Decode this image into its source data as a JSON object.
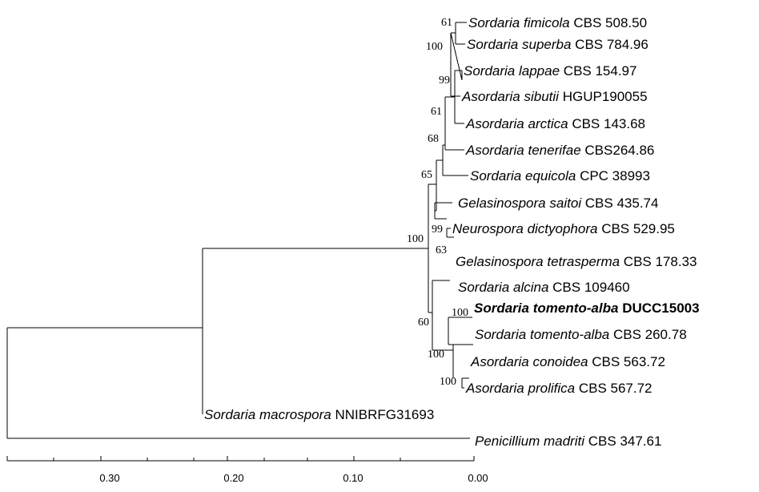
{
  "taxa": [
    {
      "genus": "Sordaria",
      "species": "fimicola",
      "strain": "CBS 508.50",
      "bold": false
    },
    {
      "genus": "Sordaria",
      "species": "superba",
      "strain": "CBS 784.96",
      "bold": false
    },
    {
      "genus": "Sordaria",
      "species": "lappae",
      "strain": "CBS 154.97",
      "bold": false
    },
    {
      "genus": "Asordaria",
      "species": "sibutii",
      "strain": "HGUP190055",
      "bold": false
    },
    {
      "genus": "Asordaria",
      "species": "arctica",
      "strain": "CBS 143.68",
      "bold": false
    },
    {
      "genus": "Asordaria",
      "species": "tenerifae",
      "strain": "CBS264.86",
      "bold": false
    },
    {
      "genus": "Sordaria",
      "species": "equicola",
      "strain": "CPC 38993",
      "bold": false
    },
    {
      "genus": "Gelasinospora",
      "species": "saitoi",
      "strain": "CBS 435.74",
      "bold": false
    },
    {
      "genus": "Neurospora",
      "species": "dictyophora",
      "strain": "CBS 529.95",
      "bold": false
    },
    {
      "genus": "Gelasinospora",
      "species": "tetrasperma",
      "strain": "CBS 178.33",
      "bold": false
    },
    {
      "genus": "Sordaria",
      "species": "alcina",
      "strain": "CBS 109460",
      "bold": false
    },
    {
      "genus": "Sordaria",
      "species": "tomento-alba",
      "strain": "DUCC15003",
      "bold": true
    },
    {
      "genus": "Sordaria",
      "species": "tomento-alba",
      "strain": "CBS 260.78",
      "bold": false
    },
    {
      "genus": "Asordaria",
      "species": "conoidea",
      "strain": "CBS 563.72",
      "bold": false
    },
    {
      "genus": "Asordaria",
      "species": "prolifica",
      "strain": "CBS 567.72",
      "bold": false
    },
    {
      "genus": "Sordaria",
      "species": "macrospora",
      "strain": "NNIBRFG31693",
      "bold": false
    },
    {
      "genus": "Penicillium",
      "species": "madriti",
      "strain": "CBS 347.61",
      "bold": false
    }
  ],
  "support_values": [
    "61",
    "100",
    "99",
    "61",
    "68",
    "65",
    "99",
    "63",
    "100",
    "100",
    "60",
    "100",
    "100"
  ],
  "scale_axis": {
    "ticks": [
      "0.30",
      "0.20",
      "0.10",
      "0.00"
    ]
  }
}
